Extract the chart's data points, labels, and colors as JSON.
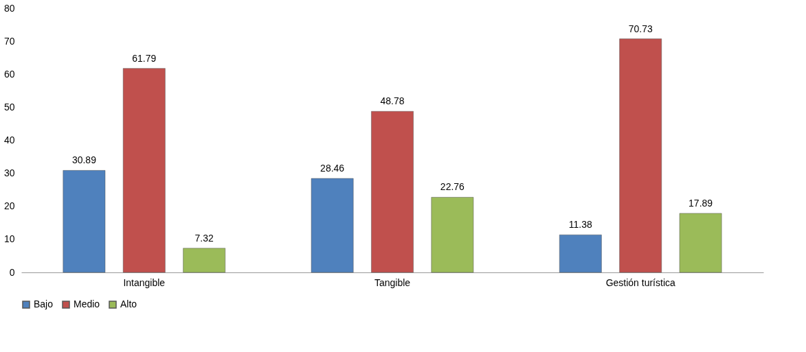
{
  "chart_data": {
    "type": "bar",
    "categories": [
      "Intangible",
      "Tangible",
      "Gestión turística"
    ],
    "series": [
      {
        "name": "Bajo",
        "color": "#4f81bd",
        "values": [
          30.89,
          28.46,
          11.38
        ]
      },
      {
        "name": "Medio",
        "color": "#c0504d",
        "values": [
          61.79,
          48.78,
          70.73
        ]
      },
      {
        "name": "Alto",
        "color": "#9bbb59",
        "values": [
          7.32,
          22.76,
          17.89
        ]
      }
    ],
    "ylim": [
      0,
      80
    ],
    "yticks": [
      0,
      10,
      20,
      30,
      40,
      50,
      60,
      70,
      80
    ],
    "data_labels": true,
    "legend": "bottom",
    "grid": false
  }
}
